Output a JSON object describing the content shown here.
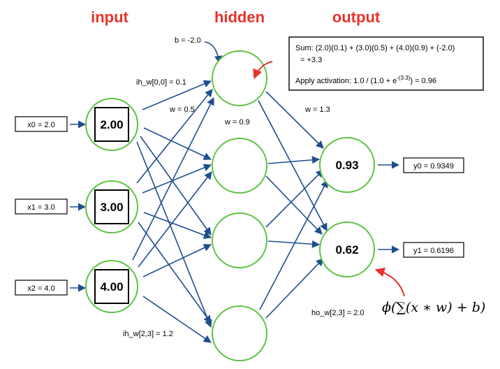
{
  "colors": {
    "title": "#e8332a",
    "node_stroke": "#5cc243",
    "edge": "#1f4e8f",
    "pointer": "#e8332a"
  },
  "layers": {
    "input": "input",
    "hidden": "hidden",
    "output": "output"
  },
  "inputs": [
    {
      "label": "x0 = 2.0",
      "value": "2.00"
    },
    {
      "label": "x1 = 3.0",
      "value": "3.00"
    },
    {
      "label": "x2 = 4.0",
      "value": "4.00"
    }
  ],
  "outputs": [
    {
      "value": "0.93",
      "label": "y0 = 0.9349"
    },
    {
      "value": "0.62",
      "label": "y1 = 0.6196"
    }
  ],
  "annotations": {
    "bias": "b = -2.0",
    "ih_w00": "ih_w[0,0] = 0.1",
    "w05": "w = 0.5",
    "w09": "w = 0.9",
    "w13": "w = 1.3",
    "ho_w23": "ho_w[2,3] = 2.0",
    "ih_w23": "ih_w[2,3] = 1.2"
  },
  "callout": {
    "line1": "Sum: (2.0)(0.1) + (3.0)(0.5) + (4.0)(0.9)  +  (-2.0)",
    "line2": "= +3.3",
    "line3_prefix": "Apply activation:  1.0 / (1.0 + e",
    "line3_exp": "-(3.3)",
    "line3_suffix": ")  = 0.96"
  },
  "formula": "ϕ(∑(x ∗ w)  + b)"
}
